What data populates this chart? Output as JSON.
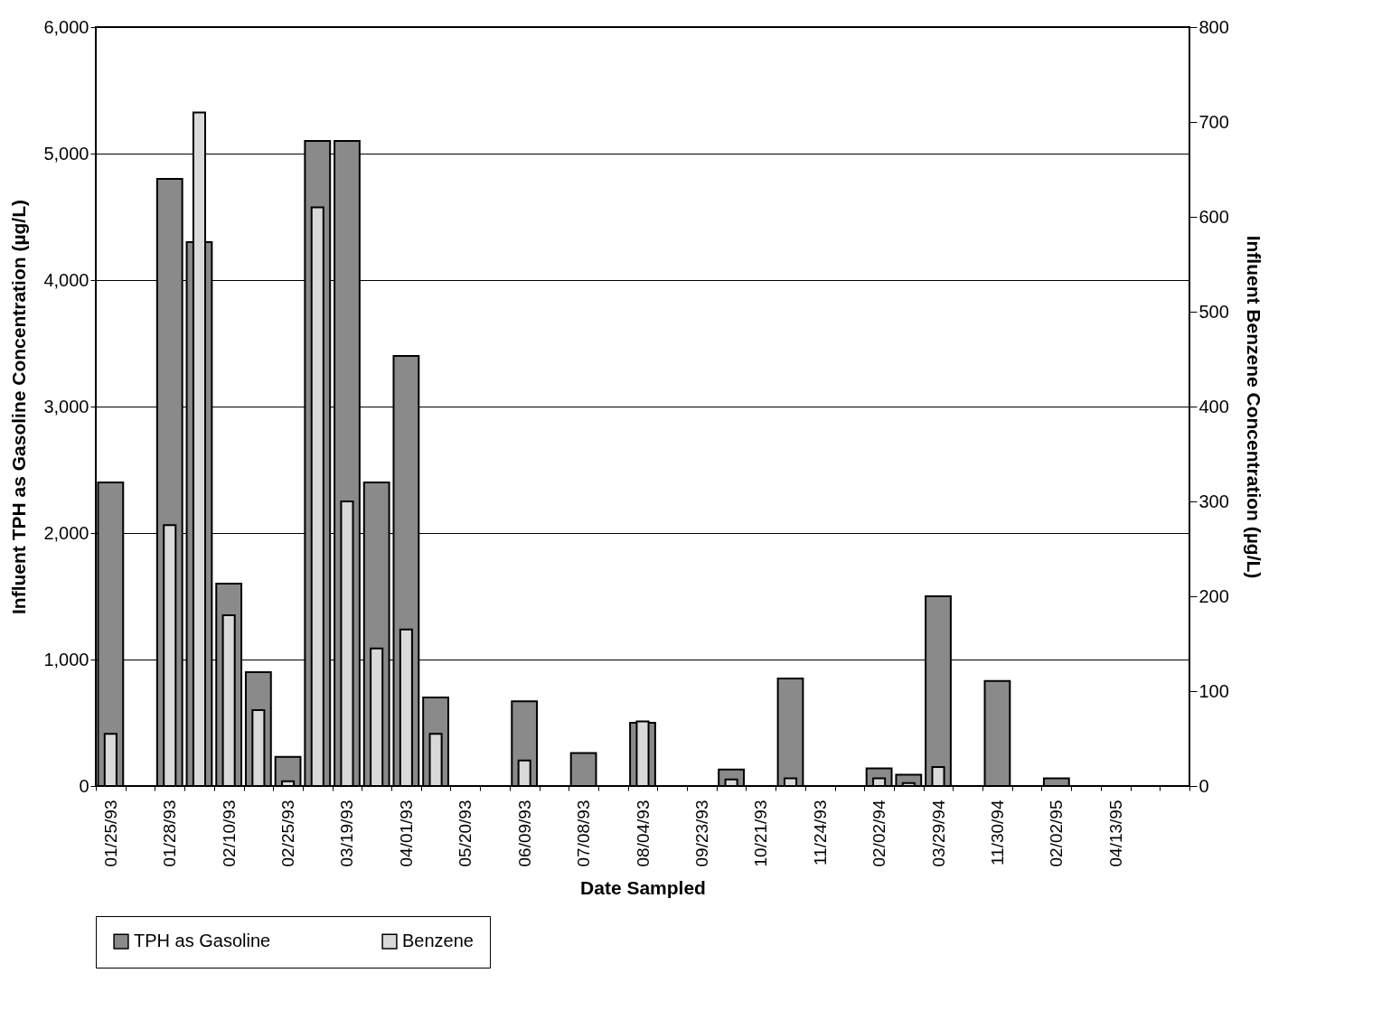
{
  "chart_data": {
    "type": "bar",
    "xlabel": "Date Sampled",
    "ylabel": "Influent TPH as Gasoline Concentration (µg/L)",
    "y2label": "Influent Benzene Concentration (µg/L)",
    "categories": [
      "01/25/93",
      null,
      "01/28/93",
      null,
      "02/10/93",
      null,
      "02/25/93",
      null,
      "03/19/93",
      null,
      "04/01/93",
      null,
      "05/20/93",
      null,
      "06/09/93",
      null,
      "07/08/93",
      null,
      "08/04/93",
      null,
      "09/23/93",
      null,
      "10/21/93",
      null,
      "11/24/93",
      null,
      "02/02/94",
      null,
      "03/29/94",
      null,
      "11/30/94",
      null,
      "02/02/95",
      null,
      "04/13/95",
      null,
      null
    ],
    "series": [
      {
        "name": "TPH as Gasoline",
        "color": "#8a8a8a",
        "values": [
          2400,
          null,
          4800,
          4300,
          1600,
          900,
          230,
          5100,
          5100,
          2400,
          3400,
          700,
          null,
          null,
          670,
          null,
          260,
          null,
          500,
          null,
          null,
          130,
          null,
          850,
          null,
          null,
          140,
          90,
          1500,
          null,
          830,
          null,
          60,
          null,
          null,
          null,
          null
        ]
      },
      {
        "name": "Benzene",
        "color": "#d9d9d9",
        "axis": "y2",
        "values": [
          55,
          null,
          275,
          710,
          180,
          80,
          5,
          610,
          300,
          145,
          165,
          55,
          null,
          null,
          27,
          null,
          null,
          null,
          68,
          null,
          null,
          7,
          null,
          8,
          null,
          null,
          8,
          3,
          20,
          null,
          null,
          null,
          null,
          null,
          null,
          null,
          null
        ]
      }
    ],
    "ylim": [
      0,
      6000
    ],
    "yticks": [
      0,
      {
        "value": 1000,
        "label": "1,000"
      },
      {
        "value": 2000,
        "label": "2,000"
      },
      {
        "value": 3000,
        "label": "3,000"
      },
      {
        "value": 4000,
        "label": "4,000"
      },
      {
        "value": 5000,
        "label": "5,000"
      },
      {
        "value": 6000,
        "label": "6,000"
      }
    ],
    "y2lim": [
      0,
      800
    ],
    "y2ticks": [
      0,
      100,
      200,
      300,
      400,
      500,
      600,
      700,
      800
    ],
    "grid": "y",
    "legend": "bottom"
  }
}
